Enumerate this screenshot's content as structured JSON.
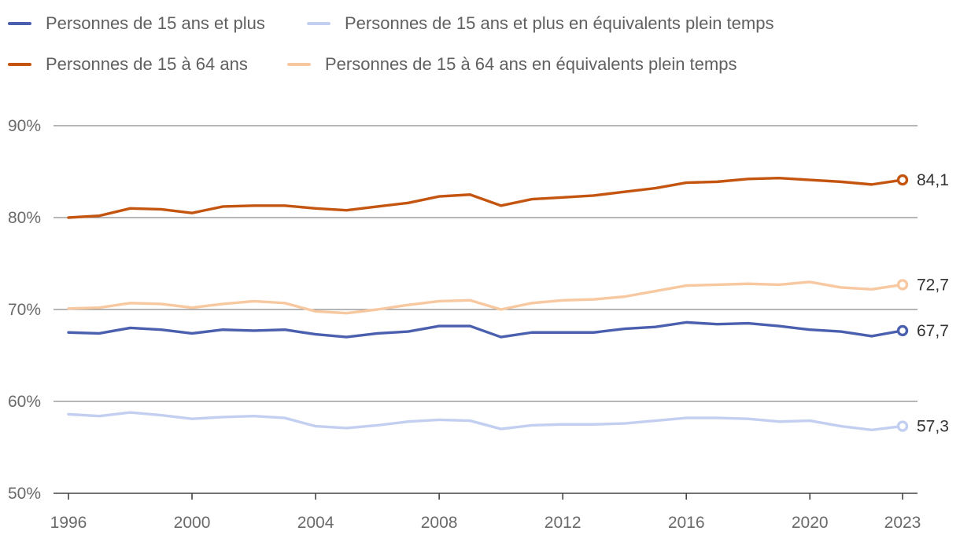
{
  "chart_data": {
    "type": "line",
    "title": "",
    "xlabel": "",
    "ylabel": "",
    "x": [
      1996,
      1997,
      1998,
      1999,
      2000,
      2001,
      2002,
      2003,
      2004,
      2005,
      2006,
      2007,
      2008,
      2009,
      2010,
      2011,
      2012,
      2013,
      2014,
      2015,
      2016,
      2017,
      2018,
      2019,
      2020,
      2021,
      2022,
      2023
    ],
    "x_ticks": [
      "1996",
      "2000",
      "2004",
      "2008",
      "2012",
      "2016",
      "2020",
      "2023"
    ],
    "y_ticks": [
      "50%",
      "60%",
      "70%",
      "80%",
      "90%"
    ],
    "ylim": [
      50,
      90
    ],
    "xlim": [
      1996,
      2023
    ],
    "grid": true,
    "legend_position": "top",
    "series": [
      {
        "name": "Personnes de 15 ans et plus",
        "color": "#4a5fad",
        "end_label": "67,7",
        "values": [
          67.5,
          67.4,
          68.0,
          67.8,
          67.4,
          67.8,
          67.7,
          67.8,
          67.3,
          67.0,
          67.4,
          67.6,
          68.2,
          68.2,
          67.0,
          67.5,
          67.5,
          67.5,
          67.9,
          68.1,
          68.6,
          68.4,
          68.5,
          68.2,
          67.8,
          67.6,
          67.1,
          67.7
        ]
      },
      {
        "name": "Personnes de 15 ans et plus en équivalents plein temps",
        "color": "#c3cff0",
        "end_label": "57,3",
        "values": [
          58.6,
          58.4,
          58.8,
          58.5,
          58.1,
          58.3,
          58.4,
          58.2,
          57.3,
          57.1,
          57.4,
          57.8,
          58.0,
          57.9,
          57.0,
          57.4,
          57.5,
          57.5,
          57.6,
          57.9,
          58.2,
          58.2,
          58.1,
          57.8,
          57.9,
          57.3,
          56.9,
          57.3
        ]
      },
      {
        "name": "Personnes de 15 à 64 ans",
        "color": "#c45510",
        "end_label": "84,1",
        "values": [
          80.0,
          80.2,
          81.0,
          80.9,
          80.5,
          81.2,
          81.3,
          81.3,
          81.0,
          80.8,
          81.2,
          81.6,
          82.3,
          82.5,
          81.3,
          82.0,
          82.2,
          82.4,
          82.8,
          83.2,
          83.8,
          83.9,
          84.2,
          84.3,
          84.1,
          83.9,
          83.6,
          84.1
        ]
      },
      {
        "name": "Personnes de 15 à 64 ans en équivalents plein temps",
        "color": "#f8c8a0",
        "end_label": "72,7",
        "values": [
          70.1,
          70.2,
          70.7,
          70.6,
          70.2,
          70.6,
          70.9,
          70.7,
          69.8,
          69.6,
          70.0,
          70.5,
          70.9,
          71.0,
          70.0,
          70.7,
          71.0,
          71.1,
          71.4,
          72.0,
          72.6,
          72.7,
          72.8,
          72.7,
          73.0,
          72.4,
          72.2,
          72.7
        ]
      }
    ],
    "legend_rows": [
      [
        0,
        1
      ],
      [
        2,
        3
      ]
    ]
  }
}
